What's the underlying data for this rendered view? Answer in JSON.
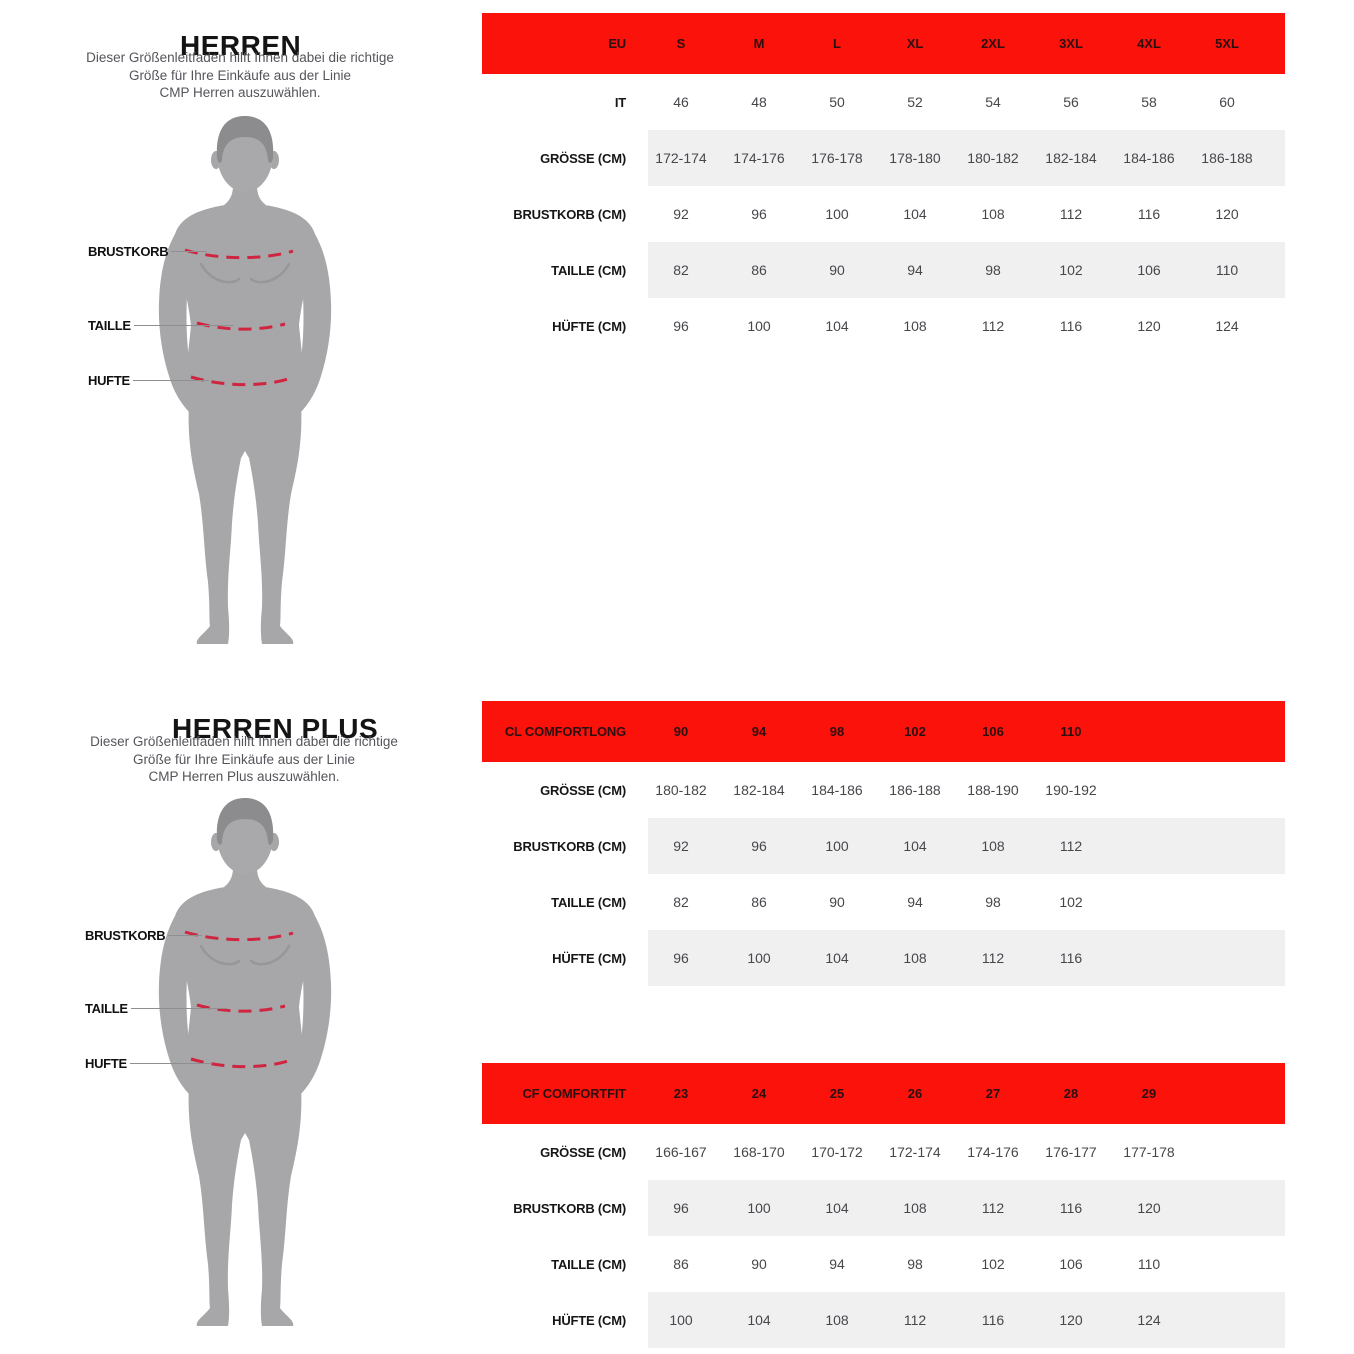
{
  "sections": [
    {
      "title": "HERREN",
      "subtitle_lines": [
        "Dieser Größenleitfaden hilft Ihnen dabei die richtige",
        "Größe für Ihre Einkäufe aus der Linie",
        "CMP Herren auszuwählen."
      ],
      "figure_labels": [
        "BRUSTKORB",
        "TAILLE",
        "HUFTE"
      ]
    },
    {
      "title": "HERREN PLUS",
      "subtitle_lines": [
        "Dieser Größenleitfaden hilft Ihnen dabei die richtige",
        "Größe für Ihre Einkäufe aus der Linie",
        "CMP Herren Plus auszuwählen."
      ],
      "figure_labels": [
        "BRUSTKORB",
        "TAILLE",
        "HUFTE"
      ]
    }
  ],
  "tables": [
    {
      "header_label": "EU",
      "header_values": [
        "S",
        "M",
        "L",
        "XL",
        "2XL",
        "3XL",
        "4XL",
        "5XL"
      ],
      "rows": [
        {
          "label": "IT",
          "values": [
            "46",
            "48",
            "50",
            "52",
            "54",
            "56",
            "58",
            "60"
          ]
        },
        {
          "label": "GRÖSSE (CM)",
          "values": [
            "172-174",
            "174-176",
            "176-178",
            "178-180",
            "180-182",
            "182-184",
            "184-186",
            "186-188"
          ]
        },
        {
          "label": "BRUSTKORB (CM)",
          "values": [
            "92",
            "96",
            "100",
            "104",
            "108",
            "112",
            "116",
            "120"
          ]
        },
        {
          "label": "TAILLE (CM)",
          "values": [
            "82",
            "86",
            "90",
            "94",
            "98",
            "102",
            "106",
            "110"
          ]
        },
        {
          "label": "HÜFTE (CM)",
          "values": [
            "96",
            "100",
            "104",
            "108",
            "112",
            "116",
            "120",
            "124"
          ]
        }
      ]
    },
    {
      "header_label": "CL COMFORTLONG",
      "header_values": [
        "90",
        "94",
        "98",
        "102",
        "106",
        "110"
      ],
      "rows": [
        {
          "label": "GRÖSSE (CM)",
          "values": [
            "180-182",
            "182-184",
            "184-186",
            "186-188",
            "188-190",
            "190-192"
          ]
        },
        {
          "label": "BRUSTKORB (CM)",
          "values": [
            "92",
            "96",
            "100",
            "104",
            "108",
            "112"
          ]
        },
        {
          "label": "TAILLE (CM)",
          "values": [
            "82",
            "86",
            "90",
            "94",
            "98",
            "102"
          ]
        },
        {
          "label": "HÜFTE (CM)",
          "values": [
            "96",
            "100",
            "104",
            "108",
            "112",
            "116"
          ]
        }
      ]
    },
    {
      "header_label": "CF COMFORTFIT",
      "header_values": [
        "23",
        "24",
        "25",
        "26",
        "27",
        "28",
        "29"
      ],
      "rows": [
        {
          "label": "GRÖSSE (CM)",
          "values": [
            "166-167",
            "168-170",
            "170-172",
            "172-174",
            "174-176",
            "176-177",
            "177-178"
          ]
        },
        {
          "label": "BRUSTKORB (CM)",
          "values": [
            "96",
            "100",
            "104",
            "108",
            "112",
            "116",
            "120"
          ]
        },
        {
          "label": "TAILLE (CM)",
          "values": [
            "86",
            "90",
            "94",
            "98",
            "102",
            "106",
            "110"
          ]
        },
        {
          "label": "HÜFTE (CM)",
          "values": [
            "100",
            "104",
            "108",
            "112",
            "116",
            "120",
            "124"
          ]
        }
      ]
    }
  ],
  "colors": {
    "accent_red": "#fa120b",
    "header_text": "#2d0f10",
    "row_stripe": "#f0f0f1",
    "dash_red": "#d02540",
    "body_gray": "#a7a7a9",
    "hair_gray": "#8c8c8e"
  }
}
